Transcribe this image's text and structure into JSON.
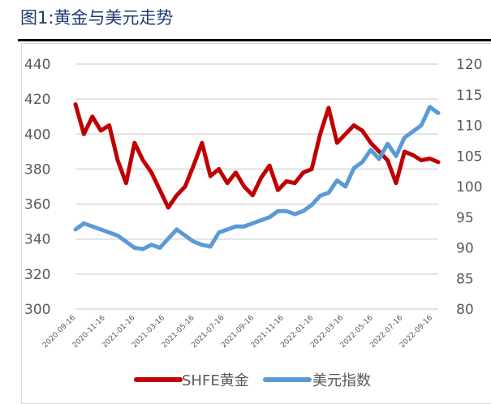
{
  "title": "图1:黄金与美元走势",
  "chart_data": {
    "type": "line",
    "title": "图1:黄金与美元走势",
    "xlabel": "",
    "ylabel_left": "",
    "ylabel_right": "",
    "x_tick_labels": [
      "2020-09-16",
      "2020-11-16",
      "2021-01-16",
      "2021-03-16",
      "2021-05-16",
      "2021-07-16",
      "2021-09-16",
      "2021-11-16",
      "2022-01-16",
      "2022-03-16",
      "2022-05-16",
      "2022-07-16",
      "2022-09-16"
    ],
    "y_left_ticks": [
      300,
      320,
      340,
      360,
      380,
      400,
      420,
      440
    ],
    "y_left_range": [
      300,
      440
    ],
    "y_right_ticks": [
      80,
      85,
      90,
      95,
      100,
      105,
      110,
      115,
      120
    ],
    "y_right_range": [
      80,
      120
    ],
    "grid": true,
    "legend_position": "bottom",
    "series": [
      {
        "name": "SHFE黄金",
        "axis": "left",
        "color": "#c00000",
        "values": [
          417,
          400,
          410,
          402,
          405,
          385,
          372,
          395,
          385,
          378,
          368,
          358,
          365,
          370,
          382,
          395,
          376,
          380,
          372,
          378,
          370,
          365,
          375,
          382,
          368,
          373,
          372,
          378,
          380,
          400,
          415,
          395,
          400,
          405,
          402,
          395,
          390,
          385,
          372,
          390,
          388,
          385,
          386,
          384
        ]
      },
      {
        "name": "美元指数",
        "axis": "right",
        "color": "#5b9bd5",
        "values": [
          93,
          94,
          93.5,
          93,
          92.5,
          92,
          91,
          90,
          89.8,
          90.5,
          90,
          91.5,
          93,
          92,
          91,
          90.5,
          90.2,
          92.5,
          93,
          93.5,
          93.5,
          94,
          94.5,
          95,
          96,
          96,
          95.5,
          96,
          97,
          98.5,
          99,
          101,
          100,
          103,
          104,
          106,
          104.5,
          107,
          105,
          108,
          109,
          110,
          113,
          112
        ]
      }
    ]
  },
  "legend": {
    "items": [
      {
        "label": "SHFE黄金",
        "color": "#c00000"
      },
      {
        "label": "美元指数",
        "color": "#5b9bd5"
      }
    ]
  }
}
